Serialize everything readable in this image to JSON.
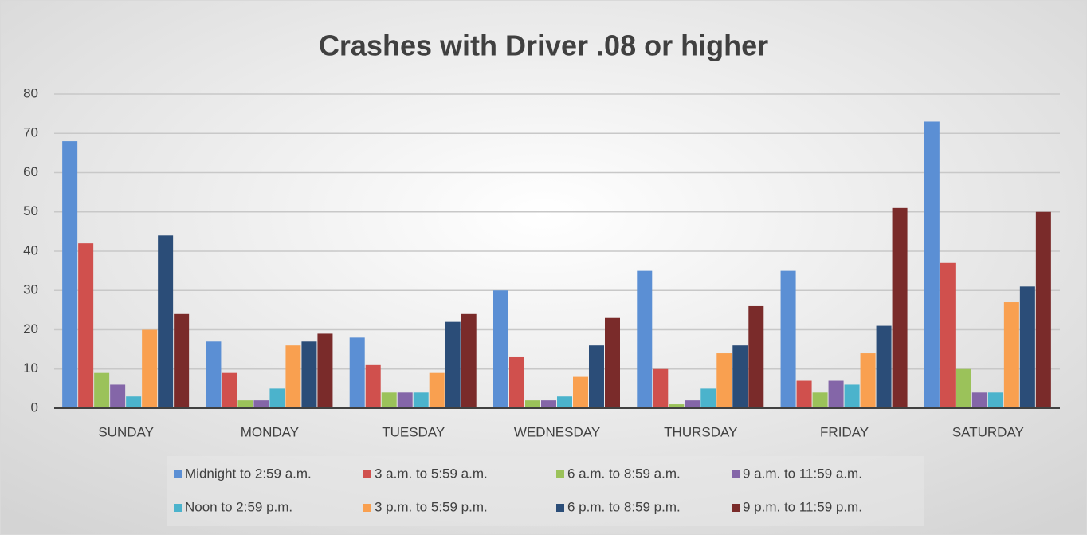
{
  "chart_data": {
    "type": "bar",
    "title": "Crashes with Driver .08 or higher",
    "categories": [
      "SUNDAY",
      "MONDAY",
      "TUESDAY",
      "WEDNESDAY",
      "THURSDAY",
      "FRIDAY",
      "SATURDAY"
    ],
    "series": [
      {
        "name": "Midnight to 2:59 a.m.",
        "color": "#5b8fd4",
        "values": [
          68,
          17,
          18,
          30,
          35,
          35,
          73
        ]
      },
      {
        "name": "3 a.m. to 5:59 a.m.",
        "color": "#d0504d",
        "values": [
          42,
          9,
          11,
          13,
          10,
          7,
          37
        ]
      },
      {
        "name": "6 a.m. to 8:59 a.m.",
        "color": "#9bc25a",
        "values": [
          9,
          2,
          4,
          2,
          1,
          4,
          10
        ]
      },
      {
        "name": "9 a.m. to 11:59 a.m.",
        "color": "#8466a8",
        "values": [
          6,
          2,
          4,
          2,
          2,
          7,
          4
        ]
      },
      {
        "name": "Noon to 2:59 p.m.",
        "color": "#4bb3cc",
        "values": [
          3,
          5,
          4,
          3,
          5,
          6,
          4
        ]
      },
      {
        "name": "3 p.m. to 5:59 p.m.",
        "color": "#f9a050",
        "values": [
          20,
          16,
          9,
          8,
          14,
          14,
          27
        ]
      },
      {
        "name": "6 p.m. to 8:59 p.m.",
        "color": "#2b4d78",
        "values": [
          44,
          17,
          22,
          16,
          16,
          21,
          31
        ]
      },
      {
        "name": "9 p.m. to 11:59 p.m.",
        "color": "#7a2b2a",
        "values": [
          24,
          19,
          24,
          23,
          26,
          51,
          50
        ]
      }
    ],
    "ylim": [
      0,
      80
    ],
    "yticks": [
      0,
      10,
      20,
      30,
      40,
      50,
      60,
      70,
      80
    ],
    "grid": true,
    "legend": "bottom"
  }
}
